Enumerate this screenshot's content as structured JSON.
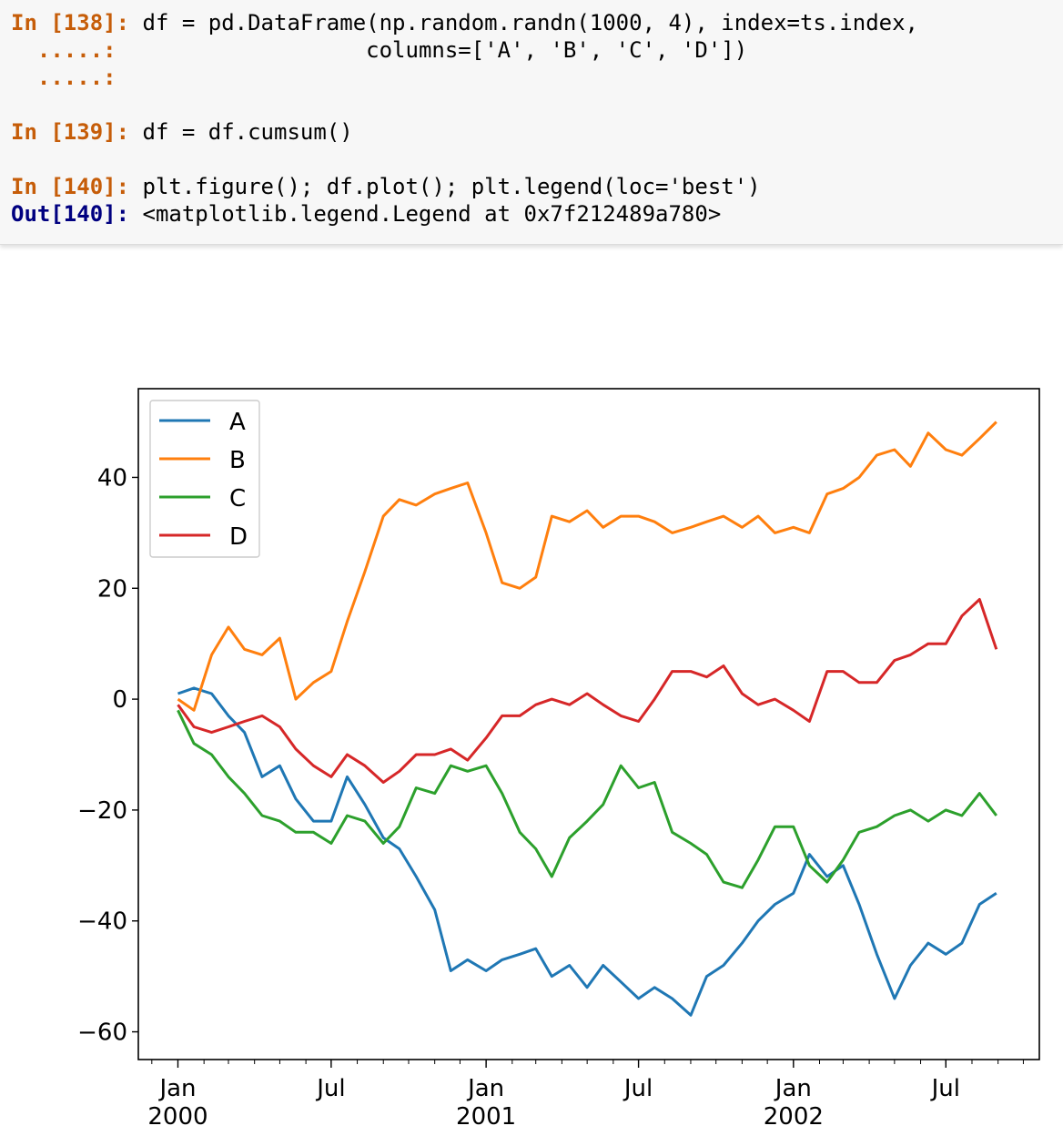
{
  "code_cells": [
    {
      "prompt": "In [138]:",
      "continuation_prompts": [
        ".....:",
        ".....:"
      ],
      "lines": [
        "df = pd.DataFrame(np.random.randn(1000, 4), index=ts.index,",
        "                  columns=['A', 'B', 'C', 'D'])"
      ]
    },
    {
      "prompt": "In [139]:",
      "lines": [
        "df = df.cumsum()"
      ]
    },
    {
      "prompt": "In [140]:",
      "lines": [
        "plt.figure(); df.plot(); plt.legend(loc='best')"
      ]
    }
  ],
  "output": {
    "prompt": "Out[140]:",
    "text": "<matplotlib.legend.Legend at 0x7f212489a780>"
  },
  "chart_data": {
    "type": "line",
    "title": "",
    "xlabel": "",
    "ylabel": "",
    "xlim": [
      "1999-11-15",
      "2002-10-20"
    ],
    "ylim": [
      -65,
      56
    ],
    "yticks": [
      40,
      20,
      0,
      -20,
      -40,
      -60
    ],
    "ytick_labels": [
      "40",
      "20",
      "0",
      "−20",
      "−40",
      "−60"
    ],
    "xticks": [
      {
        "date": "2000-01-01",
        "label": [
          "Jan",
          "2000"
        ]
      },
      {
        "date": "2000-07-01",
        "label": [
          "Jul"
        ]
      },
      {
        "date": "2001-01-01",
        "label": [
          "Jan",
          "2001"
        ]
      },
      {
        "date": "2001-07-01",
        "label": [
          "Jul"
        ]
      },
      {
        "date": "2002-01-01",
        "label": [
          "Jan",
          "2002"
        ]
      },
      {
        "date": "2002-07-01",
        "label": [
          "Jul"
        ]
      }
    ],
    "legend": {
      "placement": "upper-left",
      "entries": [
        "A",
        "B",
        "C",
        "D"
      ]
    },
    "grid": false,
    "series": [
      {
        "name": "A",
        "color": "#1f77b4",
        "x": [
          "2000-01-01",
          "2000-01-20",
          "2000-02-10",
          "2000-03-01",
          "2000-03-20",
          "2000-04-10",
          "2000-05-01",
          "2000-05-20",
          "2000-06-10",
          "2000-07-01",
          "2000-07-20",
          "2000-08-10",
          "2000-09-01",
          "2000-09-20",
          "2000-10-10",
          "2000-11-01",
          "2000-11-20",
          "2000-12-10",
          "2001-01-01",
          "2001-01-20",
          "2001-02-10",
          "2001-03-01",
          "2001-03-20",
          "2001-04-10",
          "2001-05-01",
          "2001-05-20",
          "2001-06-10",
          "2001-07-01",
          "2001-07-20",
          "2001-08-10",
          "2001-09-01",
          "2001-09-20",
          "2001-10-10",
          "2001-11-01",
          "2001-11-20",
          "2001-12-10",
          "2002-01-01",
          "2002-01-20",
          "2002-02-10",
          "2002-03-01",
          "2002-03-20",
          "2002-04-10",
          "2002-05-01",
          "2002-05-20",
          "2002-06-10",
          "2002-07-01",
          "2002-07-20",
          "2002-08-10",
          "2002-08-30"
        ],
        "y": [
          1,
          2,
          1,
          -3,
          -6,
          -14,
          -12,
          -18,
          -22,
          -22,
          -14,
          -19,
          -25,
          -27,
          -32,
          -38,
          -49,
          -47,
          -49,
          -47,
          -46,
          -45,
          -50,
          -48,
          -52,
          -48,
          -51,
          -54,
          -52,
          -54,
          -57,
          -50,
          -48,
          -44,
          -40,
          -37,
          -35,
          -28,
          -32,
          -30,
          -37,
          -46,
          -54,
          -48,
          -44,
          -46,
          -44,
          -37,
          -35
        ]
      },
      {
        "name": "B",
        "color": "#ff7f0e",
        "x": [
          "2000-01-01",
          "2000-01-20",
          "2000-02-10",
          "2000-03-01",
          "2000-03-20",
          "2000-04-10",
          "2000-05-01",
          "2000-05-20",
          "2000-06-10",
          "2000-07-01",
          "2000-07-20",
          "2000-08-10",
          "2000-09-01",
          "2000-09-20",
          "2000-10-10",
          "2000-11-01",
          "2000-11-20",
          "2000-12-10",
          "2001-01-01",
          "2001-01-20",
          "2001-02-10",
          "2001-03-01",
          "2001-03-20",
          "2001-04-10",
          "2001-05-01",
          "2001-05-20",
          "2001-06-10",
          "2001-07-01",
          "2001-07-20",
          "2001-08-10",
          "2001-09-01",
          "2001-09-20",
          "2001-10-10",
          "2001-11-01",
          "2001-11-20",
          "2001-12-10",
          "2002-01-01",
          "2002-01-20",
          "2002-02-10",
          "2002-03-01",
          "2002-03-20",
          "2002-04-10",
          "2002-05-01",
          "2002-05-20",
          "2002-06-10",
          "2002-07-01",
          "2002-07-20",
          "2002-08-10",
          "2002-08-30"
        ],
        "y": [
          0,
          -2,
          8,
          13,
          9,
          8,
          11,
          0,
          3,
          5,
          14,
          23,
          33,
          36,
          35,
          37,
          38,
          39,
          30,
          21,
          20,
          22,
          33,
          32,
          34,
          31,
          33,
          33,
          32,
          30,
          31,
          32,
          33,
          31,
          33,
          30,
          31,
          30,
          37,
          38,
          40,
          44,
          45,
          42,
          48,
          45,
          44,
          47,
          50
        ]
      },
      {
        "name": "C",
        "color": "#2ca02c",
        "x": [
          "2000-01-01",
          "2000-01-20",
          "2000-02-10",
          "2000-03-01",
          "2000-03-20",
          "2000-04-10",
          "2000-05-01",
          "2000-05-20",
          "2000-06-10",
          "2000-07-01",
          "2000-07-20",
          "2000-08-10",
          "2000-09-01",
          "2000-09-20",
          "2000-10-10",
          "2000-11-01",
          "2000-11-20",
          "2000-12-10",
          "2001-01-01",
          "2001-01-20",
          "2001-02-10",
          "2001-03-01",
          "2001-03-20",
          "2001-04-10",
          "2001-05-01",
          "2001-05-20",
          "2001-06-10",
          "2001-07-01",
          "2001-07-20",
          "2001-08-10",
          "2001-09-01",
          "2001-09-20",
          "2001-10-10",
          "2001-11-01",
          "2001-11-20",
          "2001-12-10",
          "2002-01-01",
          "2002-01-20",
          "2002-02-10",
          "2002-03-01",
          "2002-03-20",
          "2002-04-10",
          "2002-05-01",
          "2002-05-20",
          "2002-06-10",
          "2002-07-01",
          "2002-07-20",
          "2002-08-10",
          "2002-08-30"
        ],
        "y": [
          -2,
          -8,
          -10,
          -14,
          -17,
          -21,
          -22,
          -24,
          -24,
          -26,
          -21,
          -22,
          -26,
          -23,
          -16,
          -17,
          -12,
          -13,
          -12,
          -17,
          -24,
          -27,
          -32,
          -25,
          -22,
          -19,
          -12,
          -16,
          -15,
          -24,
          -26,
          -28,
          -33,
          -34,
          -29,
          -23,
          -23,
          -30,
          -33,
          -29,
          -24,
          -23,
          -21,
          -20,
          -22,
          -20,
          -21,
          -17,
          -21
        ]
      },
      {
        "name": "D",
        "color": "#d62728",
        "x": [
          "2000-01-01",
          "2000-01-20",
          "2000-02-10",
          "2000-03-01",
          "2000-03-20",
          "2000-04-10",
          "2000-05-01",
          "2000-05-20",
          "2000-06-10",
          "2000-07-01",
          "2000-07-20",
          "2000-08-10",
          "2000-09-01",
          "2000-09-20",
          "2000-10-10",
          "2000-11-01",
          "2000-11-20",
          "2000-12-10",
          "2001-01-01",
          "2001-01-20",
          "2001-02-10",
          "2001-03-01",
          "2001-03-20",
          "2001-04-10",
          "2001-05-01",
          "2001-05-20",
          "2001-06-10",
          "2001-07-01",
          "2001-07-20",
          "2001-08-10",
          "2001-09-01",
          "2001-09-20",
          "2001-10-10",
          "2001-11-01",
          "2001-11-20",
          "2001-12-10",
          "2002-01-01",
          "2002-01-20",
          "2002-02-10",
          "2002-03-01",
          "2002-03-20",
          "2002-04-10",
          "2002-05-01",
          "2002-05-20",
          "2002-06-10",
          "2002-07-01",
          "2002-07-20",
          "2002-08-10",
          "2002-08-30"
        ],
        "y": [
          -1,
          -5,
          -6,
          -5,
          -4,
          -3,
          -5,
          -9,
          -12,
          -14,
          -10,
          -12,
          -15,
          -13,
          -10,
          -10,
          -9,
          -11,
          -7,
          -3,
          -3,
          -1,
          0,
          -1,
          1,
          -1,
          -3,
          -4,
          0,
          5,
          5,
          4,
          6,
          1,
          -1,
          0,
          -2,
          -4,
          5,
          5,
          3,
          3,
          7,
          8,
          10,
          10,
          15,
          18,
          9
        ]
      }
    ]
  }
}
